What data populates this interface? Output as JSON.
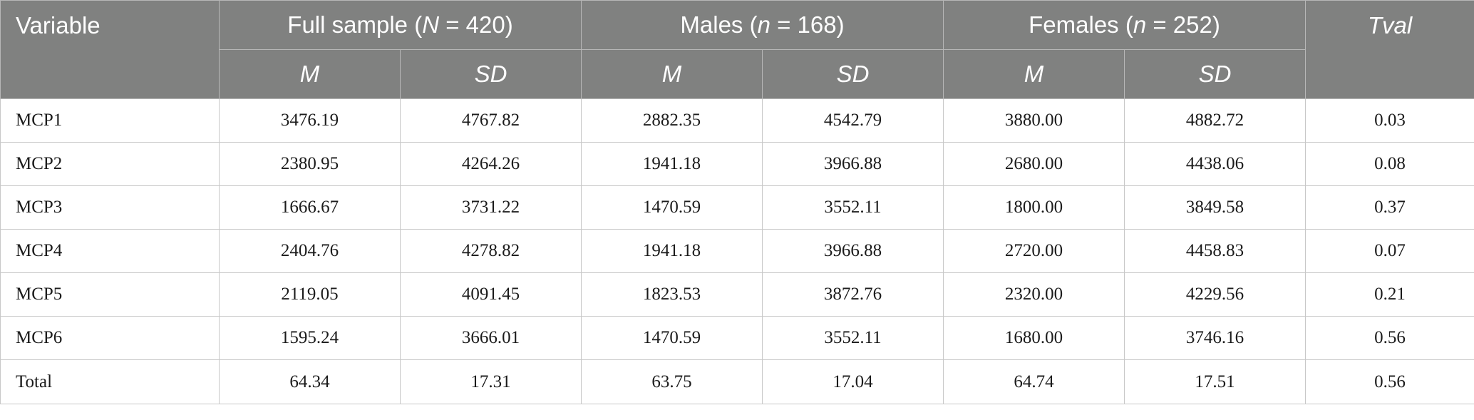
{
  "header": {
    "variable": "Variable",
    "groups": [
      {
        "pre": "Full sample (",
        "sym": "N",
        "post": " = 420)"
      },
      {
        "pre": "Males (",
        "sym": "n",
        "post": " = 168)"
      },
      {
        "pre": "Females (",
        "sym": "n",
        "post": " = 252)"
      }
    ],
    "tval": "Tval",
    "sub": [
      "M",
      "SD",
      "M",
      "SD",
      "M",
      "SD"
    ]
  },
  "rows": [
    {
      "variable": "MCP1",
      "cells": [
        "3476.19",
        "4767.82",
        "2882.35",
        "4542.79",
        "3880.00",
        "4882.72",
        "0.03"
      ]
    },
    {
      "variable": "MCP2",
      "cells": [
        "2380.95",
        "4264.26",
        "1941.18",
        "3966.88",
        "2680.00",
        "4438.06",
        "0.08"
      ]
    },
    {
      "variable": "MCP3",
      "cells": [
        "1666.67",
        "3731.22",
        "1470.59",
        "3552.11",
        "1800.00",
        "3849.58",
        "0.37"
      ]
    },
    {
      "variable": "MCP4",
      "cells": [
        "2404.76",
        "4278.82",
        "1941.18",
        "3966.88",
        "2720.00",
        "4458.83",
        "0.07"
      ]
    },
    {
      "variable": "MCP5",
      "cells": [
        "2119.05",
        "4091.45",
        "1823.53",
        "3872.76",
        "2320.00",
        "4229.56",
        "0.21"
      ]
    },
    {
      "variable": "MCP6",
      "cells": [
        "1595.24",
        "3666.01",
        "1470.59",
        "3552.11",
        "1680.00",
        "3746.16",
        "0.56"
      ]
    },
    {
      "variable": "Total",
      "cells": [
        "64.34",
        "17.31",
        "63.75",
        "17.04",
        "64.74",
        "17.51",
        "0.56"
      ]
    }
  ]
}
